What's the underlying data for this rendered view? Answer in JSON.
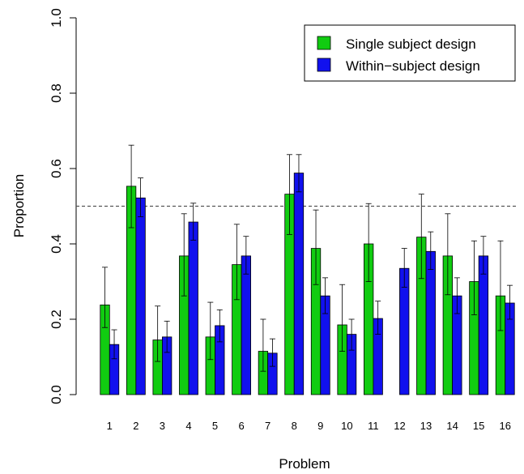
{
  "chart_data": {
    "type": "bar",
    "categories": [
      "1",
      "2",
      "3",
      "4",
      "5",
      "6",
      "7",
      "8",
      "9",
      "10",
      "11",
      "12",
      "13",
      "14",
      "15",
      "16"
    ],
    "series": [
      {
        "name": "Single subject design",
        "color": "#11cc11",
        "values": [
          0.238,
          0.553,
          0.145,
          0.368,
          0.153,
          0.345,
          0.115,
          0.532,
          0.388,
          0.185,
          0.4,
          null,
          0.418,
          0.368,
          0.3,
          0.262
        ],
        "error_low": [
          0.178,
          0.443,
          0.088,
          0.262,
          0.093,
          0.252,
          0.062,
          0.425,
          0.292,
          0.115,
          0.3,
          null,
          0.308,
          0.265,
          0.212,
          0.17
        ],
        "error_high": [
          0.338,
          0.662,
          0.235,
          0.48,
          0.245,
          0.452,
          0.2,
          0.637,
          0.49,
          0.292,
          0.507,
          null,
          0.532,
          0.48,
          0.408,
          0.408
        ]
      },
      {
        "name": "Within−subject design",
        "color": "#1111ee",
        "values": [
          0.133,
          0.522,
          0.153,
          0.458,
          0.183,
          0.368,
          0.11,
          0.588,
          0.262,
          0.16,
          0.202,
          0.335,
          0.38,
          0.262,
          0.368,
          0.243
        ],
        "error_low": [
          0.095,
          0.472,
          0.112,
          0.41,
          0.14,
          0.32,
          0.075,
          0.538,
          0.215,
          0.118,
          0.16,
          0.285,
          0.332,
          0.215,
          0.32,
          0.2
        ],
        "error_high": [
          0.172,
          0.575,
          0.195,
          0.508,
          0.225,
          0.42,
          0.148,
          0.637,
          0.31,
          0.2,
          0.248,
          0.388,
          0.432,
          0.31,
          0.42,
          0.29
        ]
      }
    ],
    "reference_line": 0.5,
    "xlabel": "Problem",
    "ylabel": "Proportion",
    "ylim": [
      0,
      1
    ],
    "y_ticks": [
      "0.0",
      "0.2",
      "0.4",
      "0.6",
      "0.8",
      "1.0"
    ],
    "legend_position": "top-right",
    "grid": false
  }
}
